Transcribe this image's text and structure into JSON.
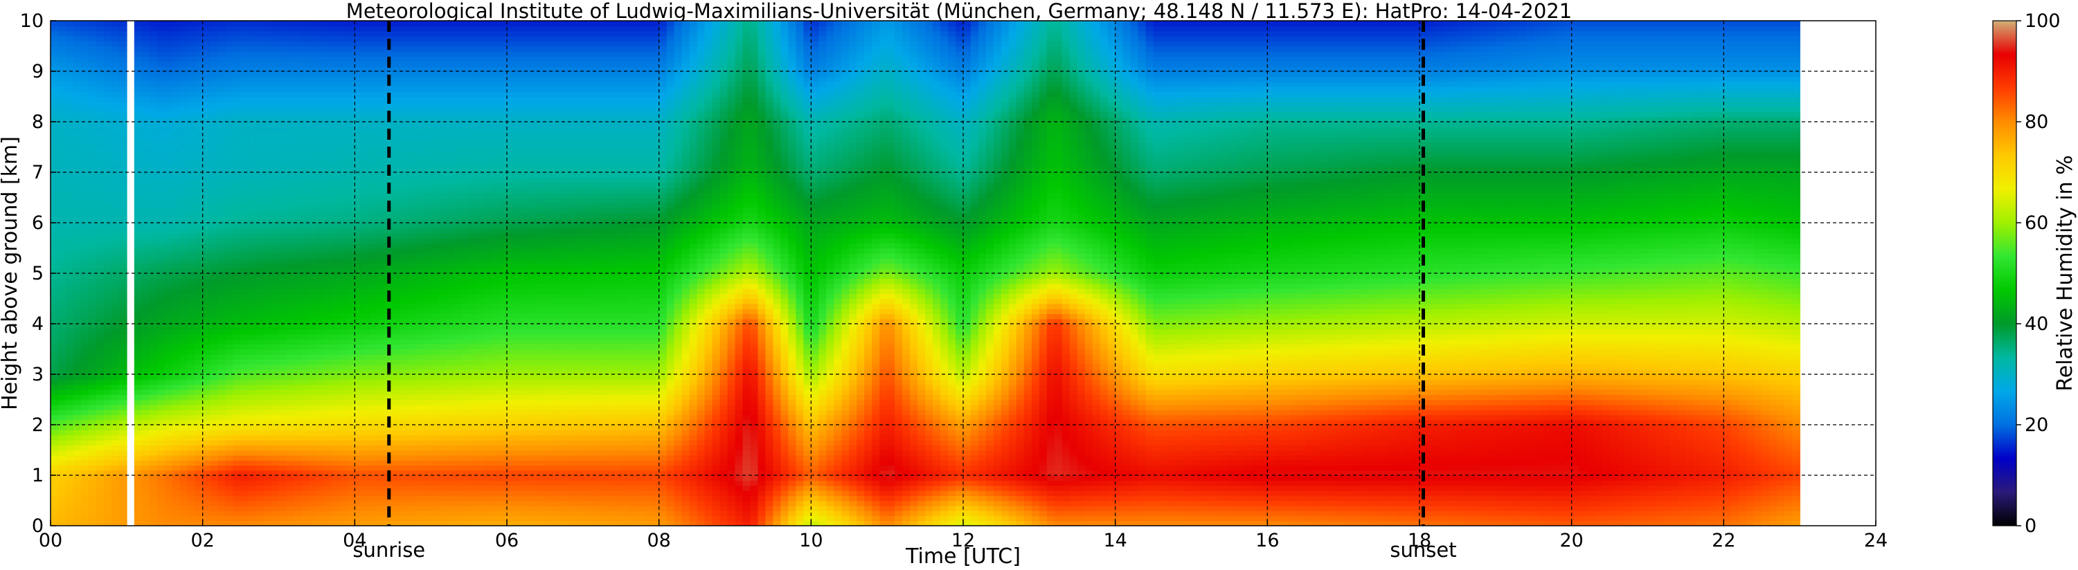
{
  "chart_data": {
    "type": "heatmap",
    "title": "Meteorological Institute of Ludwig-Maximilians-Universität (München, Germany; 48.148 N / 11.573 E):    HatPro: 14-04-2021",
    "xlabel": "Time [UTC]",
    "ylabel": "Height above ground [km]",
    "xlim": [
      0,
      24
    ],
    "ylim": [
      0,
      10
    ],
    "x_ticks": [
      "00",
      "02",
      "04",
      "06",
      "08",
      "10",
      "12",
      "14",
      "16",
      "18",
      "20",
      "22",
      "24"
    ],
    "y_ticks": [
      "0",
      "1",
      "2",
      "3",
      "4",
      "5",
      "6",
      "7",
      "8",
      "9",
      "10"
    ],
    "grid": true,
    "data_start_hour": 0,
    "data_end_hour": 23.0,
    "missing_data_gap_hours": [
      1.0,
      1.1
    ],
    "events": [
      {
        "label": "sunrise",
        "hour": 4.45
      },
      {
        "label": "sunset",
        "hour": 18.05
      }
    ],
    "colorbar": {
      "label": "Relative Humidity in %",
      "range": [
        0,
        100
      ],
      "ticks": [
        "0",
        "20",
        "40",
        "60",
        "80",
        "100"
      ],
      "colors": [
        "#000000",
        "#2a1a7a",
        "#0000c8",
        "#0070e0",
        "#00a8e8",
        "#00b8a0",
        "#009a2a",
        "#00c800",
        "#32e632",
        "#a0f000",
        "#f0f000",
        "#ffc800",
        "#ff8c00",
        "#ff3c00",
        "#e80000",
        "#d0b078"
      ]
    },
    "humidity_profiles": [
      {
        "hour": 0.0,
        "rh_percent": [
          75,
          72,
          55,
          38,
          36,
          34,
          32,
          31,
          30,
          25,
          18
        ]
      },
      {
        "hour": 1.5,
        "rh_percent": [
          80,
          82,
          65,
          48,
          42,
          38,
          32,
          30,
          28,
          20,
          15
        ]
      },
      {
        "hour": 2.5,
        "rh_percent": [
          80,
          90,
          68,
          55,
          45,
          40,
          34,
          31,
          30,
          22,
          16
        ]
      },
      {
        "hour": 4.0,
        "rh_percent": [
          78,
          85,
          70,
          58,
          48,
          42,
          35,
          32,
          30,
          22,
          15
        ]
      },
      {
        "hour": 6.0,
        "rh_percent": [
          76,
          86,
          72,
          60,
          52,
          46,
          38,
          33,
          30,
          22,
          15
        ]
      },
      {
        "hour": 8.0,
        "rh_percent": [
          78,
          86,
          74,
          60,
          52,
          47,
          40,
          33,
          30,
          22,
          15
        ]
      },
      {
        "hour": 9.2,
        "rh_percent": [
          90,
          96,
          95,
          92,
          86,
          62,
          50,
          44,
          42,
          38,
          35
        ]
      },
      {
        "hour": 10.0,
        "rh_percent": [
          62,
          84,
          74,
          60,
          50,
          46,
          42,
          36,
          32,
          22,
          16
        ]
      },
      {
        "hour": 11.0,
        "rh_percent": [
          80,
          95,
          90,
          85,
          80,
          58,
          45,
          40,
          36,
          30,
          25
        ]
      },
      {
        "hour": 12.0,
        "rh_percent": [
          64,
          88,
          78,
          62,
          52,
          48,
          40,
          34,
          30,
          22,
          15
        ]
      },
      {
        "hour": 13.2,
        "rh_percent": [
          80,
          95,
          94,
          92,
          88,
          60,
          50,
          46,
          44,
          38,
          34
        ]
      },
      {
        "hour": 14.5,
        "rh_percent": [
          80,
          92,
          85,
          70,
          58,
          48,
          42,
          36,
          32,
          22,
          15
        ]
      },
      {
        "hour": 16.0,
        "rh_percent": [
          80,
          94,
          86,
          72,
          60,
          50,
          44,
          38,
          34,
          22,
          15
        ]
      },
      {
        "hour": 18.0,
        "rh_percent": [
          82,
          94,
          90,
          74,
          62,
          52,
          46,
          40,
          34,
          22,
          15
        ]
      },
      {
        "hour": 20.0,
        "rh_percent": [
          84,
          94,
          92,
          76,
          64,
          54,
          46,
          40,
          34,
          24,
          18
        ]
      },
      {
        "hour": 22.0,
        "rh_percent": [
          82,
          90,
          86,
          74,
          64,
          56,
          48,
          42,
          36,
          24,
          18
        ]
      },
      {
        "hour": 23.0,
        "rh_percent": [
          78,
          86,
          80,
          72,
          62,
          54,
          46,
          42,
          36,
          24,
          18
        ]
      }
    ]
  }
}
